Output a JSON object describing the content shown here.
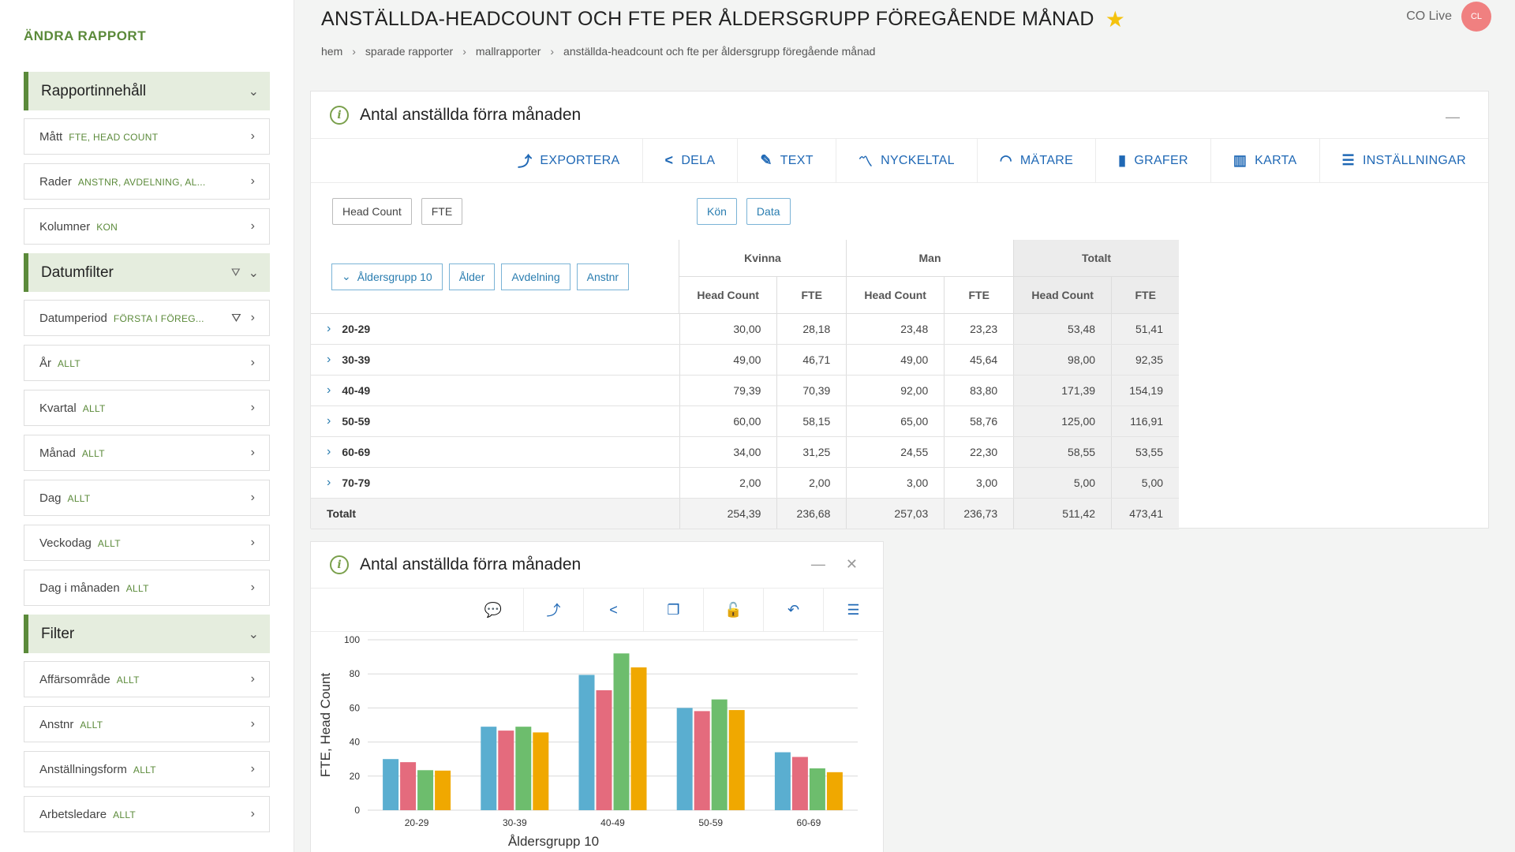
{
  "sidebar": {
    "title": "ÄNDRA RAPPORT",
    "sections": [
      {
        "header": "Rapportinnehåll",
        "has_filter_icon": false,
        "items": [
          {
            "label": "Mått",
            "value": "FTE, HEAD COUNT"
          },
          {
            "label": "Rader",
            "value": "ANSTNR, AVDELNING, AL..."
          },
          {
            "label": "Kolumner",
            "value": "KON"
          }
        ]
      },
      {
        "header": "Datumfilter",
        "has_filter_icon": true,
        "items": [
          {
            "label": "Datumperiod",
            "value": "FÖRSTA I FÖREG...",
            "filter_icon": true
          },
          {
            "label": "År",
            "value": "ALLT"
          },
          {
            "label": "Kvartal",
            "value": "ALLT"
          },
          {
            "label": "Månad",
            "value": "ALLT"
          },
          {
            "label": "Dag",
            "value": "ALLT"
          },
          {
            "label": "Veckodag",
            "value": "ALLT"
          },
          {
            "label": "Dag i månaden",
            "value": "ALLT"
          }
        ]
      },
      {
        "header": "Filter",
        "has_filter_icon": false,
        "items": [
          {
            "label": "Affärsområde",
            "value": "ALLT"
          },
          {
            "label": "Anstnr",
            "value": "ALLT"
          },
          {
            "label": "Anställningsform",
            "value": "ALLT"
          },
          {
            "label": "Arbetsledare",
            "value": "ALLT"
          }
        ]
      }
    ]
  },
  "header": {
    "title": "ANSTÄLLDA-HEADCOUNT OCH FTE PER ÅLDERSGRUPP FÖREGÅENDE MÅNAD",
    "breadcrumb": [
      "hem",
      "sparade rapporter",
      "mallrapporter",
      "anställda-headcount och fte per åldersgrupp föregående månad"
    ],
    "user_label": "CO Live",
    "avatar_initials": "CL"
  },
  "panel1": {
    "title": "Antal anställda förra månaden",
    "toolbar": [
      {
        "label": "EXPORTERA",
        "icon": "export-icon",
        "glyph": "⤴"
      },
      {
        "label": "DELA",
        "icon": "share-icon",
        "glyph": "<"
      },
      {
        "label": "TEXT",
        "icon": "text-edit-icon",
        "glyph": "✎"
      },
      {
        "label": "NYCKELTAL",
        "icon": "kpi-icon",
        "glyph": "〽"
      },
      {
        "label": "MÄTARE",
        "icon": "gauge-icon",
        "glyph": "◠"
      },
      {
        "label": "GRAFER",
        "icon": "bar-chart-icon",
        "glyph": "▮"
      },
      {
        "label": "KARTA",
        "icon": "map-icon",
        "glyph": "▥"
      },
      {
        "label": "INSTÄLLNINGAR",
        "icon": "settings-list-icon",
        "glyph": "☰"
      }
    ],
    "measure_chips": [
      "Head Count",
      "FTE"
    ],
    "column_chips": [
      "Kön",
      "Data"
    ],
    "row_chips": [
      "Åldersgrupp 10",
      "Ålder",
      "Avdelning",
      "Anstnr"
    ],
    "column_groups": [
      "Kvinna",
      "Man",
      "Totalt"
    ],
    "sub_columns": [
      "Head Count",
      "FTE"
    ],
    "rows": [
      {
        "label": "20-29",
        "values": [
          "30,00",
          "28,18",
          "23,48",
          "23,23",
          "53,48",
          "51,41"
        ]
      },
      {
        "label": "30-39",
        "values": [
          "49,00",
          "46,71",
          "49,00",
          "45,64",
          "98,00",
          "92,35"
        ]
      },
      {
        "label": "40-49",
        "values": [
          "79,39",
          "70,39",
          "92,00",
          "83,80",
          "171,39",
          "154,19"
        ]
      },
      {
        "label": "50-59",
        "values": [
          "60,00",
          "58,15",
          "65,00",
          "58,76",
          "125,00",
          "116,91"
        ]
      },
      {
        "label": "60-69",
        "values": [
          "34,00",
          "31,25",
          "24,55",
          "22,30",
          "58,55",
          "53,55"
        ]
      },
      {
        "label": "70-79",
        "values": [
          "2,00",
          "2,00",
          "3,00",
          "3,00",
          "5,00",
          "5,00"
        ]
      }
    ],
    "total_row": {
      "label": "Totalt",
      "values": [
        "254,39",
        "236,68",
        "257,03",
        "236,73",
        "511,42",
        "473,41"
      ]
    }
  },
  "panel2": {
    "title": "Antal anställda förra månaden",
    "toolbar_icons": [
      {
        "name": "comment-icon",
        "glyph": "💬"
      },
      {
        "name": "export-icon",
        "glyph": "⤴"
      },
      {
        "name": "share-icon",
        "glyph": "<"
      },
      {
        "name": "copy-icon",
        "glyph": "❐"
      },
      {
        "name": "unlock-icon",
        "glyph": "🔓"
      },
      {
        "name": "undo-icon",
        "glyph": "↶"
      },
      {
        "name": "list-icon",
        "glyph": "☰"
      }
    ]
  },
  "colors": {
    "accent_green": "#5b8a3a",
    "link_blue": "#1f68b5",
    "series": [
      "#5aaed0",
      "#e46b7d",
      "#6dbd6d",
      "#f0a800"
    ]
  },
  "chart_data": {
    "type": "bar",
    "categories": [
      "20-29",
      "30-39",
      "40-49",
      "50-59",
      "60-69"
    ],
    "series": [
      {
        "values": [
          30.0,
          49.0,
          79.39,
          60.0,
          34.0
        ]
      },
      {
        "values": [
          28.18,
          46.71,
          70.39,
          58.15,
          31.25
        ]
      },
      {
        "values": [
          23.48,
          49.0,
          92.0,
          65.0,
          24.55
        ]
      },
      {
        "values": [
          23.23,
          45.64,
          83.8,
          58.76,
          22.3
        ]
      }
    ],
    "ylabel": "FTE, Head Count",
    "xlabel": "Åldersgrupp 10",
    "ylim": [
      0,
      100
    ],
    "yticks": [
      0,
      20,
      40,
      60,
      80,
      100
    ],
    "grid": true
  }
}
